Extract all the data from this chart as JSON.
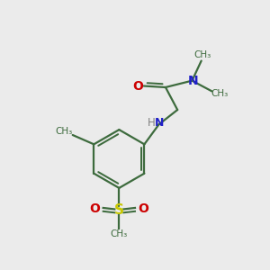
{
  "bg_color": "#ebebeb",
  "bond_color": "#3d6b3d",
  "n_color": "#2020c8",
  "o_color": "#cc0000",
  "s_color": "#c8c800",
  "h_color": "#808080",
  "figsize": [
    3.0,
    3.0
  ],
  "dpi": 100,
  "xlim": [
    0,
    10
  ],
  "ylim": [
    0,
    10
  ]
}
